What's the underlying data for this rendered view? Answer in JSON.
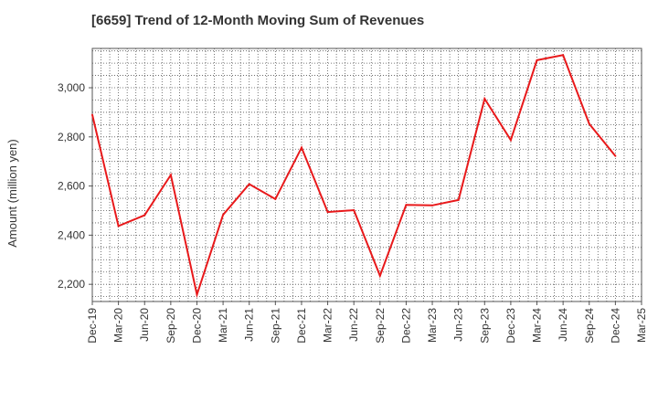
{
  "chart_data": {
    "type": "line",
    "title": "[6659]  Trend of 12-Month Moving Sum of Revenues",
    "ylabel": "Amount (million yen)",
    "xlabel": "",
    "ylim": [
      2130,
      3160
    ],
    "y_ticks": [
      2200,
      2400,
      2600,
      2800,
      3000
    ],
    "y_tick_labels": [
      "2,200",
      "2,400",
      "2,600",
      "2,800",
      "3,000"
    ],
    "grid": true,
    "line_color": "#e8191b",
    "categories": [
      "Dec-19",
      "Mar-20",
      "Jun-20",
      "Sep-20",
      "Dec-20",
      "Mar-21",
      "Jun-21",
      "Sep-21",
      "Dec-21",
      "Mar-22",
      "Jun-22",
      "Sep-22",
      "Dec-22",
      "Mar-23",
      "Jun-23",
      "Sep-23",
      "Dec-23",
      "Mar-24",
      "Jun-24",
      "Sep-24",
      "Dec-24",
      "Mar-25"
    ],
    "series": [
      {
        "values": [
          2890,
          2437,
          2481,
          2645,
          2158,
          2483,
          2608,
          2547,
          2756,
          2494,
          2502,
          2235,
          2523,
          2521,
          2543,
          2955,
          2787,
          3112,
          3133,
          2853,
          2722,
          null
        ]
      }
    ]
  }
}
